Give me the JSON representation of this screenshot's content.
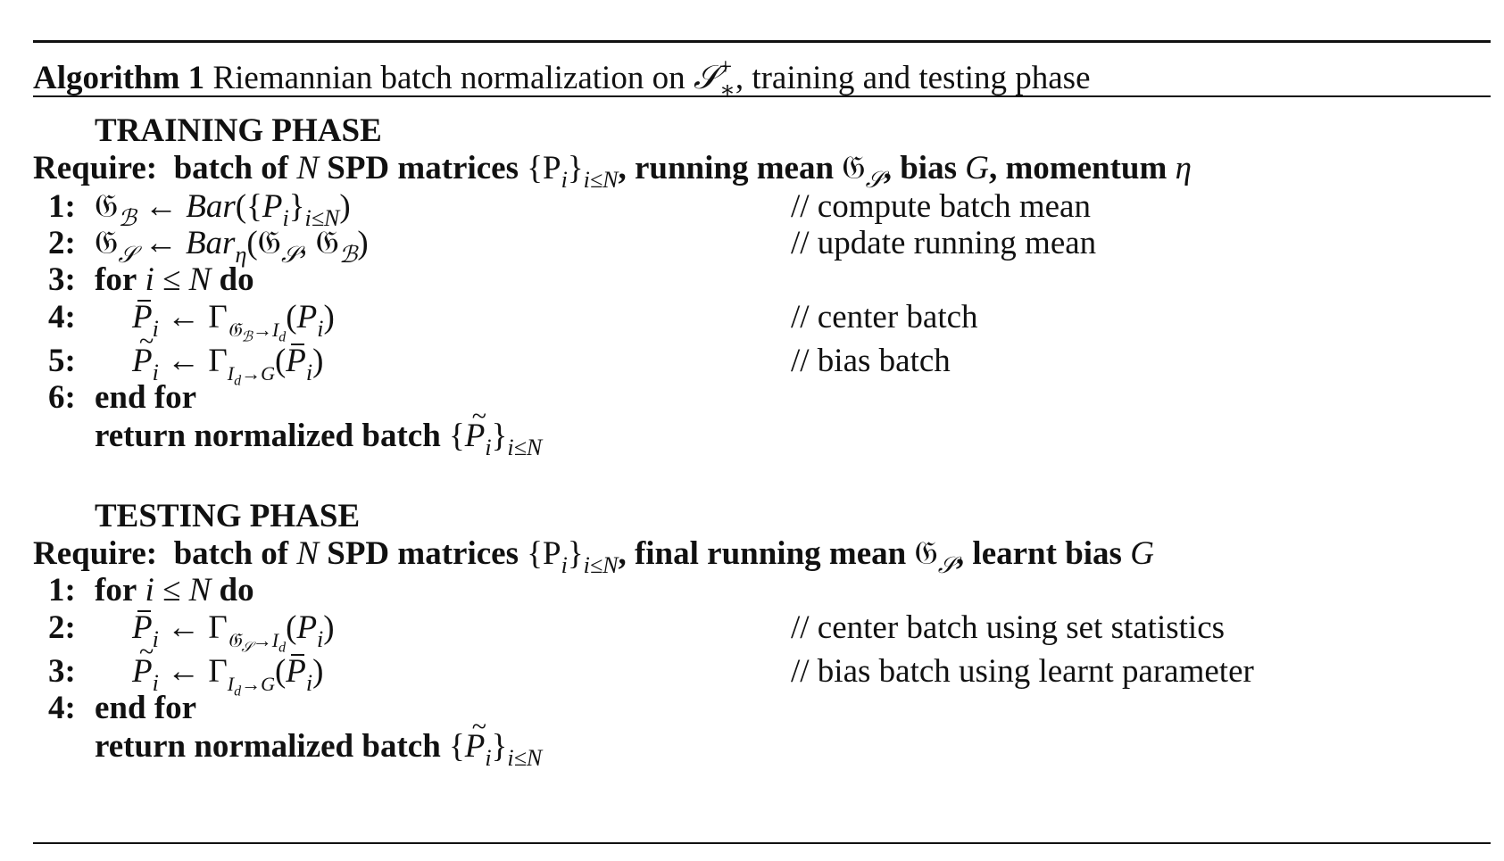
{
  "caption": {
    "label": "Algorithm 1",
    "text_before": "Riemannian batch normalization on",
    "set_symbol": "𝒮",
    "set_sub": "∗",
    "set_sup": "+",
    "text_after": ", training and testing phase"
  },
  "training": {
    "heading": "TRAINING PHASE",
    "require_label": "Require:",
    "require_parts": [
      "batch of",
      "N",
      "SPD matrices",
      "{P",
      "i",
      "}",
      "i≤N",
      ", running mean",
      "𝔊",
      "𝒮",
      ", bias",
      "G",
      ", momentum",
      "η"
    ],
    "steps": [
      {
        "num": "1:",
        "comment": "// compute batch mean"
      },
      {
        "num": "2:",
        "comment": "// update running mean"
      },
      {
        "num": "3:",
        "keyword_for": "for",
        "cond": "i ≤ N",
        "keyword_do": "do"
      },
      {
        "num": "4:",
        "comment": "// center batch"
      },
      {
        "num": "5:",
        "comment": "// bias batch"
      },
      {
        "num": "6:",
        "keyword": "end for"
      }
    ],
    "return_label": "return normalized batch"
  },
  "testing": {
    "heading": "TESTING PHASE",
    "require_label": "Require:",
    "require_parts": [
      "batch of",
      "N",
      "SPD matrices",
      "{P",
      "i",
      "}",
      "i≤N",
      ", final running mean",
      "𝔊",
      "𝒮",
      ", learnt bias",
      "G"
    ],
    "steps": [
      {
        "num": "1:",
        "keyword_for": "for",
        "cond": "i ≤ N",
        "keyword_do": "do"
      },
      {
        "num": "2:",
        "comment": "// center batch using set statistics"
      },
      {
        "num": "3:",
        "comment": "// bias batch using learnt parameter"
      },
      {
        "num": "4:",
        "keyword": "end for"
      }
    ],
    "return_label": "return normalized batch"
  },
  "math": {
    "bar_fn": "Bar",
    "gamma": "Γ",
    "arrow": "←",
    "id": "I",
    "id_sub": "d"
  }
}
